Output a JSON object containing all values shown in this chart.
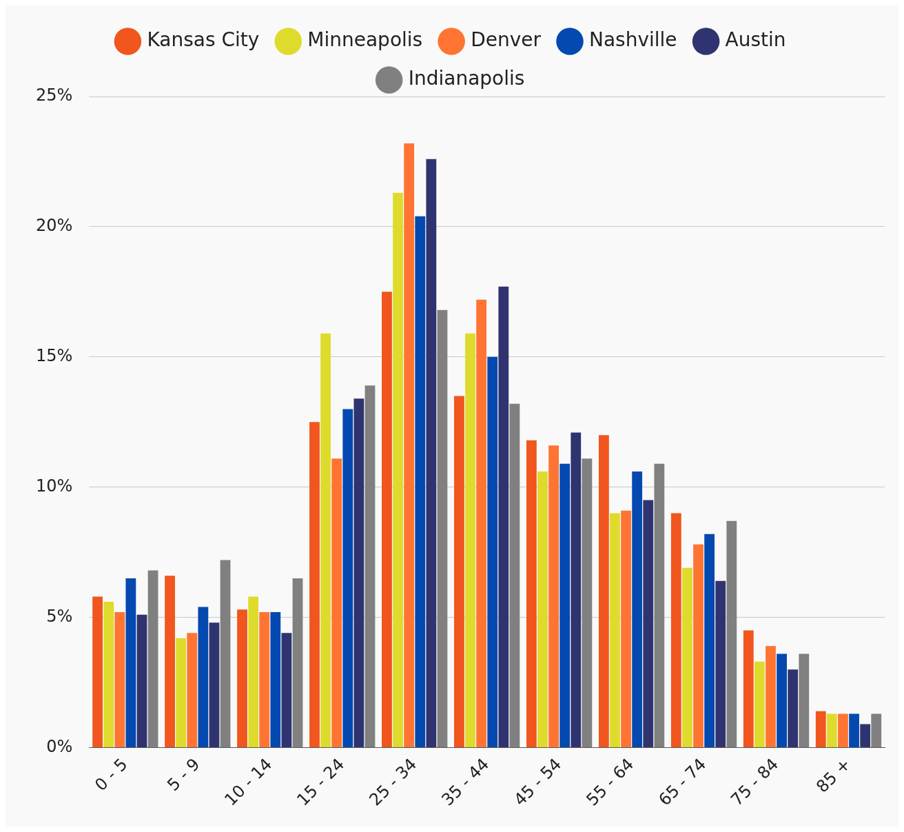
{
  "chart_data": {
    "type": "bar",
    "categories": [
      "0 - 5",
      "5 - 9",
      "10 - 14",
      "15 - 24",
      "25 - 34",
      "35 - 44",
      "45 - 54",
      "55 - 64",
      "65 - 74",
      "75 - 84",
      "85 +"
    ],
    "series": [
      {
        "name": "Kansas City",
        "color": "#f0561d",
        "values": [
          5.8,
          6.6,
          5.3,
          12.5,
          17.5,
          13.5,
          11.8,
          12.0,
          9.0,
          4.5,
          1.4
        ]
      },
      {
        "name": "Minneapolis",
        "color": "#dedb2c",
        "values": [
          5.6,
          4.2,
          5.8,
          15.9,
          21.3,
          15.9,
          10.6,
          9.0,
          6.9,
          3.3,
          1.3
        ]
      },
      {
        "name": "Denver",
        "color": "#ff7433",
        "values": [
          5.2,
          4.4,
          5.2,
          11.1,
          23.2,
          17.2,
          11.6,
          9.1,
          7.8,
          3.9,
          1.3
        ]
      },
      {
        "name": "Nashville",
        "color": "#0449b0",
        "values": [
          6.5,
          5.4,
          5.2,
          13.0,
          20.4,
          15.0,
          10.9,
          10.6,
          8.2,
          3.6,
          1.3
        ]
      },
      {
        "name": "Austin",
        "color": "#2f3470",
        "values": [
          5.1,
          4.8,
          4.4,
          13.4,
          22.6,
          17.7,
          12.1,
          9.5,
          6.4,
          3.0,
          0.9
        ]
      },
      {
        "name": "Indianapolis",
        "color": "#808080",
        "values": [
          6.8,
          7.2,
          6.5,
          13.9,
          16.8,
          13.2,
          11.1,
          10.9,
          8.7,
          3.6,
          1.3
        ]
      }
    ],
    "ylim": [
      0,
      25
    ],
    "yticks": [
      {
        "value": 0,
        "label": "0%"
      },
      {
        "value": 5,
        "label": "5%"
      },
      {
        "value": 10,
        "label": "10%"
      },
      {
        "value": 15,
        "label": "15%"
      },
      {
        "value": 20,
        "label": "20%"
      },
      {
        "value": 25,
        "label": "25%"
      }
    ],
    "grid": "y",
    "legend": "top"
  }
}
